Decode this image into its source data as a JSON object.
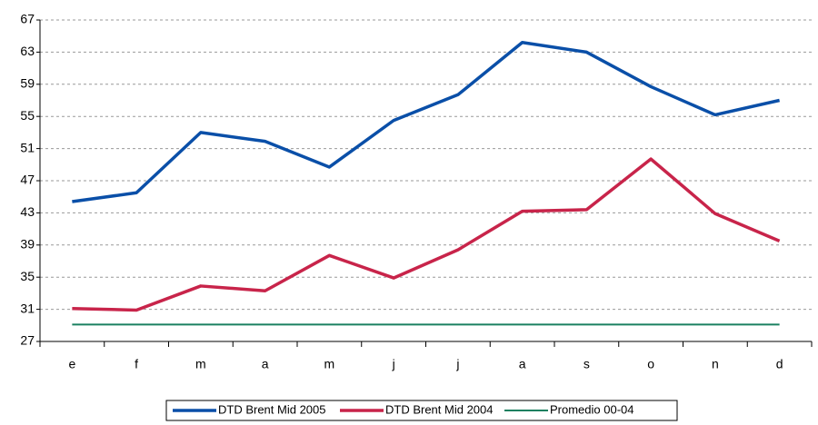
{
  "chart_data": {
    "type": "line",
    "categories": [
      "e",
      "f",
      "m",
      "a",
      "m",
      "j",
      "j",
      "a",
      "s",
      "o",
      "n",
      "d"
    ],
    "series": [
      {
        "name": "DTD Brent Mid 2005",
        "color": "#0a4fa8",
        "width": 3.5,
        "values": [
          44.4,
          45.5,
          53.0,
          51.9,
          48.7,
          54.5,
          57.7,
          64.2,
          63.0,
          58.7,
          55.2,
          57.0
        ]
      },
      {
        "name": "DTD Brent Mid 2004",
        "color": "#c8244a",
        "width": 3.5,
        "values": [
          31.1,
          30.9,
          33.9,
          33.3,
          37.7,
          34.9,
          38.4,
          43.2,
          43.4,
          49.7,
          42.9,
          39.5
        ]
      },
      {
        "name": "Promedio 00-04",
        "color": "#1a8060",
        "width": 2,
        "values": [
          29.1,
          29.1,
          29.1,
          29.1,
          29.1,
          29.1,
          29.1,
          29.1,
          29.1,
          29.1,
          29.1,
          29.1
        ]
      }
    ],
    "ylim": [
      27,
      67
    ],
    "yticks": [
      27,
      31,
      35,
      39,
      43,
      47,
      51,
      55,
      59,
      63,
      67
    ],
    "grid": true,
    "legend": "bottom"
  }
}
